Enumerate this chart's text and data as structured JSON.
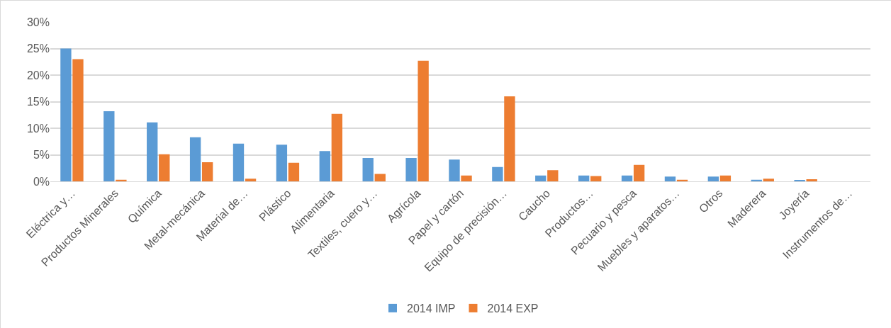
{
  "chart_data": {
    "type": "bar",
    "categories": [
      "Eléctrica y…",
      "Productos Minerales",
      "Química",
      "Metal-mecánica",
      "Material de…",
      "Plástico",
      "Alimentaria",
      "Textiles, cuero y…",
      "Agrícola",
      "Papel y cartón",
      "Equipo de precisión…",
      "Caucho",
      "Productos…",
      "Pecuario y pesca",
      "Muebles y aparatos…",
      "Otros",
      "Maderera",
      "Joyería",
      "Instrumentos de…"
    ],
    "series": [
      {
        "name": "2014 IMP",
        "color": "#5b9bd5",
        "values": [
          25,
          13.2,
          11.1,
          8.3,
          7.1,
          6.9,
          5.7,
          4.4,
          4.4,
          4.1,
          2.7,
          1.1,
          1.1,
          1.1,
          0.9,
          0.9,
          0.3,
          0.2,
          0
        ]
      },
      {
        "name": "2014 EXP",
        "color": "#ed7d31",
        "values": [
          23,
          0.3,
          5.1,
          3.6,
          0.5,
          3.5,
          12.7,
          1.4,
          22.7,
          1.1,
          16,
          2.1,
          1,
          3.1,
          0.3,
          1.1,
          0.5,
          0.4,
          0
        ]
      }
    ],
    "ylim": [
      0,
      30
    ],
    "yticks": [
      {
        "value": 0,
        "label": "0%"
      },
      {
        "value": 5,
        "label": "5%"
      },
      {
        "value": 10,
        "label": "10%"
      },
      {
        "value": 15,
        "label": "15%"
      },
      {
        "value": 20,
        "label": "20%"
      },
      {
        "value": 25,
        "label": "25%"
      },
      {
        "value": 30,
        "label": "30%"
      }
    ],
    "grid": "y",
    "legend": "bottom"
  }
}
